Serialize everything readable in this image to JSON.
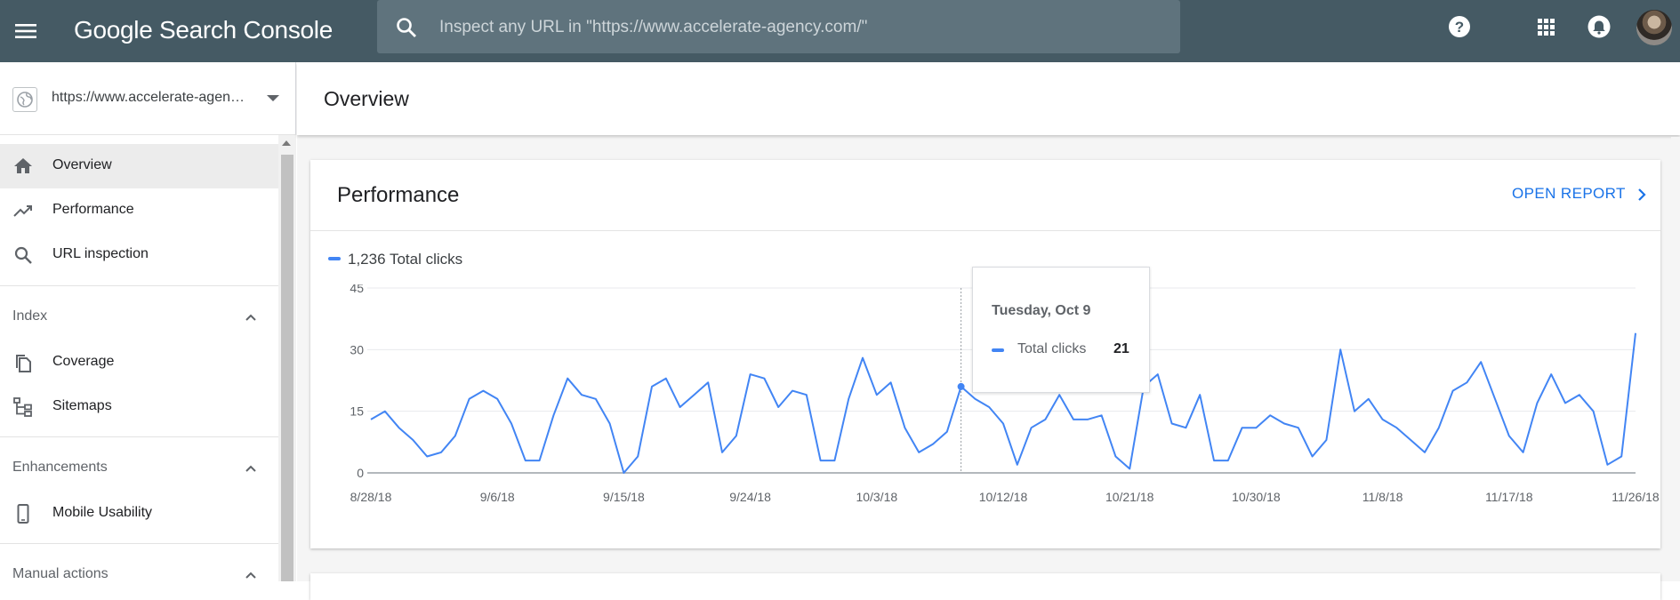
{
  "header": {
    "app_title": "Google Search Console",
    "search_placeholder": "Inspect any URL in \"https://www.accelerate-agency.com/\"",
    "icons": [
      "menu-icon",
      "search-icon",
      "help-icon",
      "apps-icon",
      "notifications-icon",
      "avatar"
    ]
  },
  "sidebar": {
    "property_label": "https://www.accelerate-agen…",
    "top_items": [
      {
        "label": "Overview",
        "icon": "home-icon",
        "active": true
      },
      {
        "label": "Performance",
        "icon": "trending-up-icon",
        "active": false
      },
      {
        "label": "URL inspection",
        "icon": "search-icon",
        "active": false
      }
    ],
    "sections": [
      {
        "title": "Index",
        "items": [
          {
            "label": "Coverage",
            "icon": "copy-icon"
          },
          {
            "label": "Sitemaps",
            "icon": "sitemap-icon"
          }
        ]
      },
      {
        "title": "Enhancements",
        "items": [
          {
            "label": "Mobile Usability",
            "icon": "phone-icon"
          }
        ]
      },
      {
        "title": "Manual actions",
        "items": []
      }
    ]
  },
  "main": {
    "page_title": "Overview",
    "performance_card": {
      "title": "Performance",
      "open_report_label": "OPEN REPORT",
      "legend_label": "1,236 Total clicks"
    },
    "tooltip": {
      "date": "Tuesday, Oct 9",
      "series": "Total clicks",
      "value": "21"
    }
  },
  "colors": {
    "header_bg": "#455a64",
    "accent": "#4285f4",
    "link": "#1a73e8"
  },
  "chart_data": {
    "type": "line",
    "title": "",
    "xlabel": "",
    "ylabel": "",
    "ylim": [
      0,
      45
    ],
    "yticks": [
      0,
      15,
      30,
      45
    ],
    "x_tick_labels": [
      "8/28/18",
      "9/6/18",
      "9/15/18",
      "9/24/18",
      "10/3/18",
      "10/12/18",
      "10/21/18",
      "10/30/18",
      "11/8/18",
      "11/17/18",
      "11/26/18"
    ],
    "x_start": "8/28/18",
    "x_end": "11/26/18",
    "grid": true,
    "highlight": {
      "x": "10/9/18",
      "y": 21
    },
    "series": [
      {
        "name": "Total clicks",
        "color": "#4285f4",
        "values": [
          13,
          15,
          11,
          8,
          4,
          5,
          9,
          18,
          20,
          18,
          12,
          3,
          3,
          14,
          23,
          19,
          18,
          12,
          0,
          4,
          21,
          23,
          16,
          19,
          22,
          5,
          9,
          24,
          23,
          16,
          20,
          19,
          3,
          3,
          18,
          28,
          19,
          22,
          11,
          5,
          7,
          10,
          21,
          18,
          16,
          12,
          2,
          11,
          13,
          19,
          13,
          13,
          14,
          4,
          1,
          21,
          24,
          12,
          11,
          19,
          3,
          3,
          11,
          11,
          14,
          12,
          11,
          4,
          8,
          30,
          15,
          18,
          13,
          11,
          8,
          5,
          11,
          20,
          22,
          27,
          18,
          9,
          5,
          17,
          24,
          17,
          19,
          15,
          2,
          4,
          34
        ]
      }
    ]
  }
}
